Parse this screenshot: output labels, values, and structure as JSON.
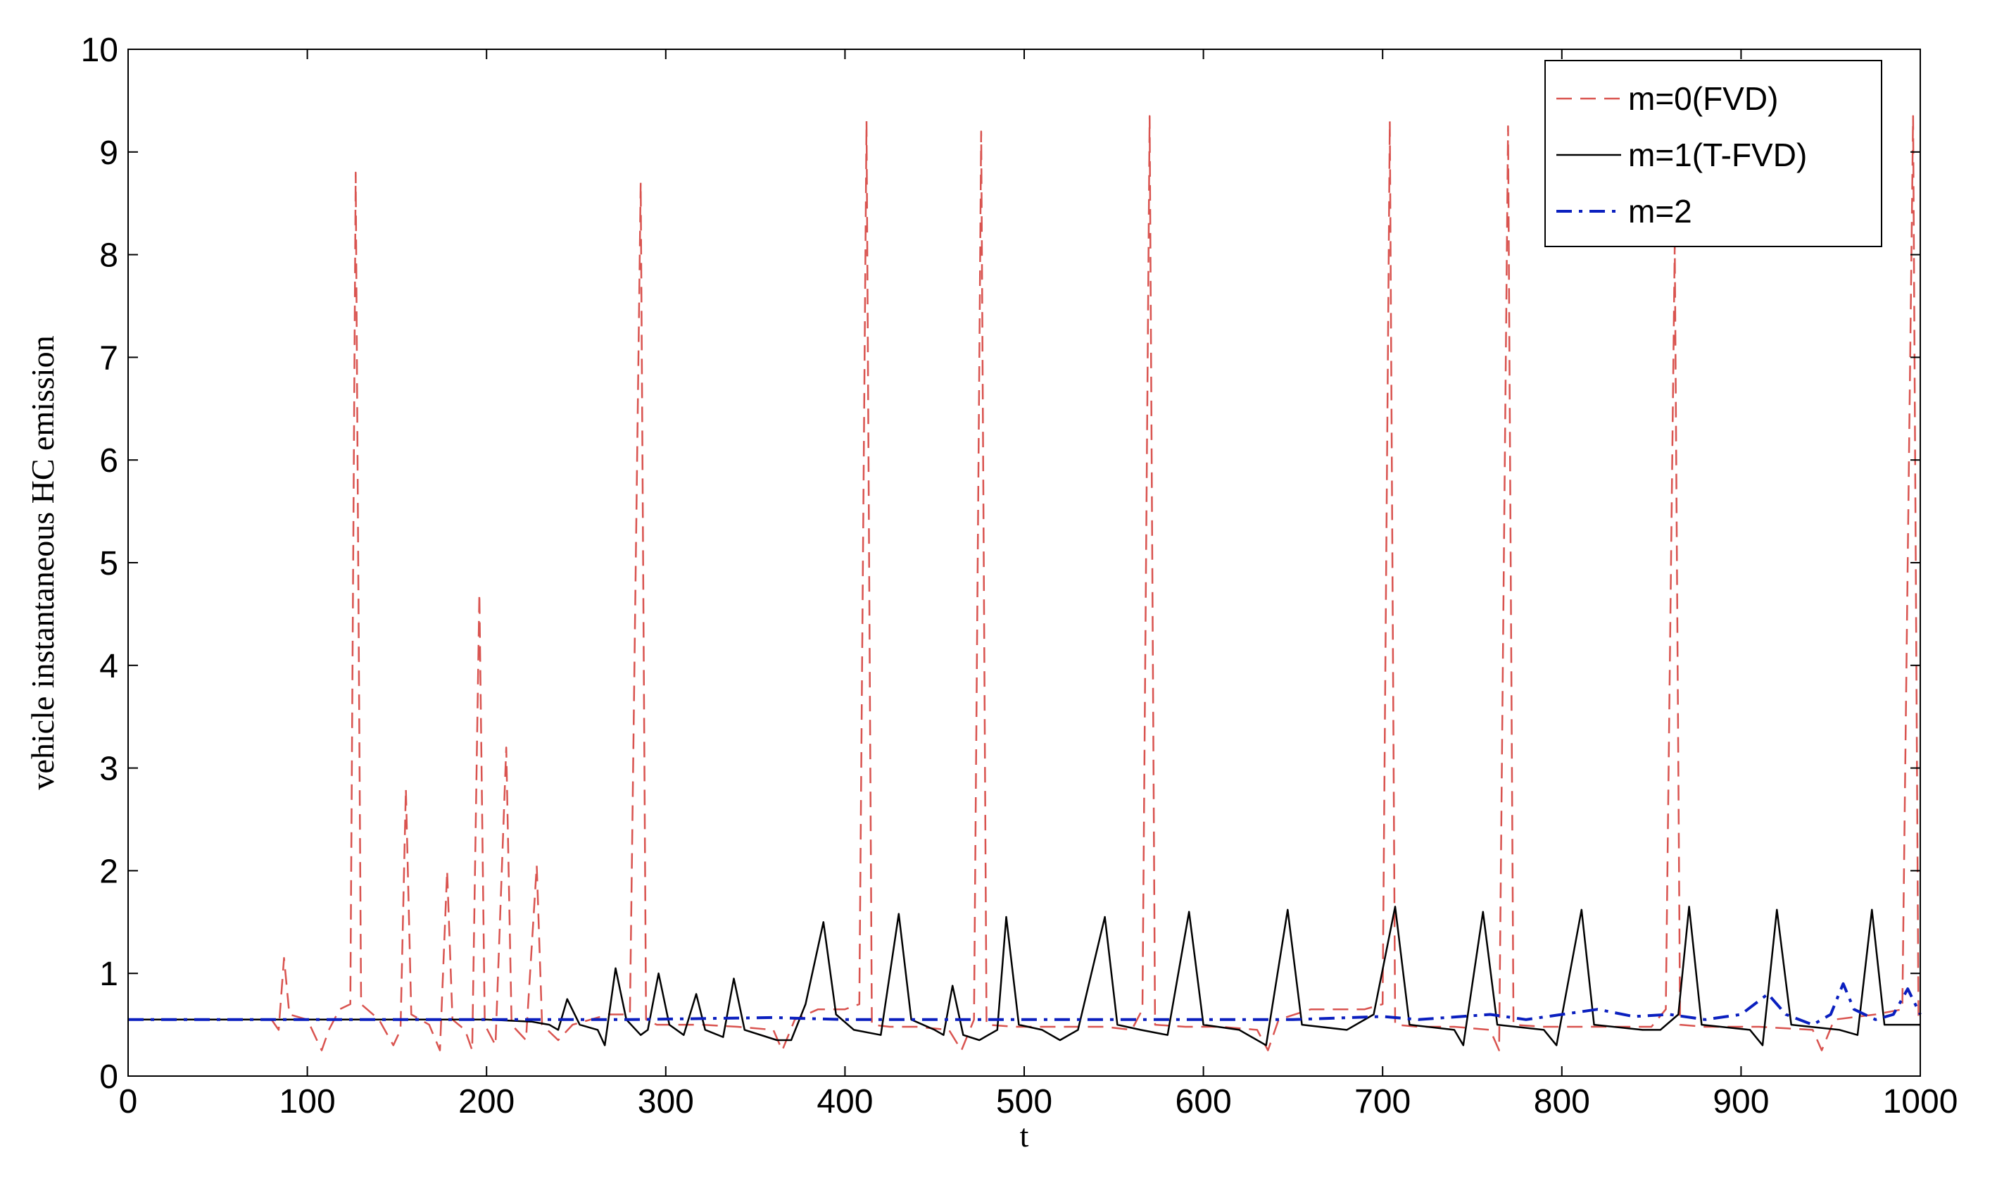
{
  "chart_data": {
    "type": "line",
    "title": "",
    "xlabel": "t",
    "ylabel": "vehicle instantaneous HC emission",
    "xlim": [
      0,
      1000
    ],
    "ylim": [
      0,
      10
    ],
    "x_ticks": [
      "0",
      "100",
      "200",
      "300",
      "400",
      "500",
      "600",
      "700",
      "800",
      "900",
      "1000"
    ],
    "y_ticks": [
      "0",
      "1",
      "2",
      "3",
      "4",
      "5",
      "6",
      "7",
      "8",
      "9",
      "10"
    ],
    "grid": false,
    "legend_position": "top-right",
    "series": [
      {
        "name": "m=0(FVD)",
        "color": "#d9534f",
        "style": "dashed",
        "points": [
          [
            0,
            0.55
          ],
          [
            80,
            0.55
          ],
          [
            84,
            0.45
          ],
          [
            87,
            1.15
          ],
          [
            90,
            0.6
          ],
          [
            100,
            0.55
          ],
          [
            108,
            0.25
          ],
          [
            112,
            0.45
          ],
          [
            118,
            0.65
          ],
          [
            124,
            0.7
          ],
          [
            127,
            8.8
          ],
          [
            130,
            0.7
          ],
          [
            140,
            0.55
          ],
          [
            148,
            0.3
          ],
          [
            152,
            0.45
          ],
          [
            155,
            2.8
          ],
          [
            158,
            0.6
          ],
          [
            168,
            0.5
          ],
          [
            174,
            0.25
          ],
          [
            178,
            2.0
          ],
          [
            181,
            0.55
          ],
          [
            188,
            0.45
          ],
          [
            192,
            0.25
          ],
          [
            196,
            4.7
          ],
          [
            199,
            0.5
          ],
          [
            205,
            0.3
          ],
          [
            211,
            3.2
          ],
          [
            214,
            0.5
          ],
          [
            222,
            0.35
          ],
          [
            228,
            2.05
          ],
          [
            231,
            0.5
          ],
          [
            240,
            0.35
          ],
          [
            248,
            0.5
          ],
          [
            258,
            0.55
          ],
          [
            268,
            0.6
          ],
          [
            280,
            0.6
          ],
          [
            286,
            8.7
          ],
          [
            289,
            0.55
          ],
          [
            295,
            0.5
          ],
          [
            305,
            0.5
          ],
          [
            320,
            0.5
          ],
          [
            340,
            0.48
          ],
          [
            360,
            0.45
          ],
          [
            365,
            0.25
          ],
          [
            372,
            0.55
          ],
          [
            385,
            0.65
          ],
          [
            400,
            0.65
          ],
          [
            408,
            0.7
          ],
          [
            412,
            9.3
          ],
          [
            415,
            0.5
          ],
          [
            425,
            0.48
          ],
          [
            440,
            0.48
          ],
          [
            458,
            0.45
          ],
          [
            465,
            0.25
          ],
          [
            472,
            0.55
          ],
          [
            476,
            9.2
          ],
          [
            479,
            0.5
          ],
          [
            495,
            0.48
          ],
          [
            520,
            0.48
          ],
          [
            545,
            0.48
          ],
          [
            560,
            0.45
          ],
          [
            566,
            0.65
          ],
          [
            570,
            9.35
          ],
          [
            573,
            0.5
          ],
          [
            590,
            0.48
          ],
          [
            610,
            0.48
          ],
          [
            630,
            0.45
          ],
          [
            636,
            0.25
          ],
          [
            642,
            0.55
          ],
          [
            660,
            0.65
          ],
          [
            690,
            0.65
          ],
          [
            700,
            0.7
          ],
          [
            704,
            9.3
          ],
          [
            707,
            0.5
          ],
          [
            720,
            0.48
          ],
          [
            740,
            0.48
          ],
          [
            760,
            0.45
          ],
          [
            765,
            0.25
          ],
          [
            770,
            9.25
          ],
          [
            773,
            0.5
          ],
          [
            790,
            0.48
          ],
          [
            820,
            0.48
          ],
          [
            850,
            0.48
          ],
          [
            858,
            0.65
          ],
          [
            863,
            8.1
          ],
          [
            866,
            0.5
          ],
          [
            880,
            0.48
          ],
          [
            910,
            0.48
          ],
          [
            940,
            0.45
          ],
          [
            945,
            0.25
          ],
          [
            952,
            0.55
          ],
          [
            975,
            0.6
          ],
          [
            990,
            0.65
          ],
          [
            996,
            9.35
          ],
          [
            999,
            0.5
          ],
          [
            1000,
            0.5
          ]
        ]
      },
      {
        "name": "m=1(T-FVD)",
        "color": "#000000",
        "style": "solid",
        "points": [
          [
            0,
            0.55
          ],
          [
            200,
            0.55
          ],
          [
            225,
            0.53
          ],
          [
            235,
            0.5
          ],
          [
            240,
            0.45
          ],
          [
            245,
            0.75
          ],
          [
            252,
            0.5
          ],
          [
            262,
            0.45
          ],
          [
            266,
            0.3
          ],
          [
            272,
            1.05
          ],
          [
            278,
            0.55
          ],
          [
            286,
            0.4
          ],
          [
            290,
            0.45
          ],
          [
            296,
            1.0
          ],
          [
            302,
            0.5
          ],
          [
            310,
            0.4
          ],
          [
            317,
            0.8
          ],
          [
            322,
            0.45
          ],
          [
            332,
            0.38
          ],
          [
            338,
            0.95
          ],
          [
            344,
            0.45
          ],
          [
            362,
            0.35
          ],
          [
            370,
            0.35
          ],
          [
            378,
            0.7
          ],
          [
            388,
            1.5
          ],
          [
            395,
            0.6
          ],
          [
            405,
            0.45
          ],
          [
            420,
            0.4
          ],
          [
            430,
            1.58
          ],
          [
            437,
            0.55
          ],
          [
            450,
            0.45
          ],
          [
            455,
            0.4
          ],
          [
            460,
            0.88
          ],
          [
            466,
            0.4
          ],
          [
            475,
            0.35
          ],
          [
            485,
            0.45
          ],
          [
            490,
            1.55
          ],
          [
            497,
            0.5
          ],
          [
            510,
            0.45
          ],
          [
            520,
            0.35
          ],
          [
            530,
            0.45
          ],
          [
            545,
            1.55
          ],
          [
            552,
            0.5
          ],
          [
            565,
            0.45
          ],
          [
            580,
            0.4
          ],
          [
            592,
            1.6
          ],
          [
            600,
            0.5
          ],
          [
            620,
            0.45
          ],
          [
            635,
            0.3
          ],
          [
            647,
            1.62
          ],
          [
            655,
            0.5
          ],
          [
            680,
            0.45
          ],
          [
            695,
            0.6
          ],
          [
            707,
            1.65
          ],
          [
            715,
            0.5
          ],
          [
            740,
            0.45
          ],
          [
            745,
            0.3
          ],
          [
            756,
            1.6
          ],
          [
            764,
            0.5
          ],
          [
            790,
            0.45
          ],
          [
            797,
            0.3
          ],
          [
            811,
            1.62
          ],
          [
            818,
            0.5
          ],
          [
            845,
            0.45
          ],
          [
            855,
            0.45
          ],
          [
            865,
            0.6
          ],
          [
            871,
            1.65
          ],
          [
            878,
            0.5
          ],
          [
            905,
            0.45
          ],
          [
            912,
            0.3
          ],
          [
            920,
            1.62
          ],
          [
            928,
            0.5
          ],
          [
            955,
            0.45
          ],
          [
            965,
            0.4
          ],
          [
            973,
            1.62
          ],
          [
            980,
            0.5
          ],
          [
            1000,
            0.5
          ]
        ]
      },
      {
        "name": "m=2",
        "color": "#0a1fbf",
        "style": "dashdot",
        "points": [
          [
            0,
            0.55
          ],
          [
            200,
            0.55
          ],
          [
            280,
            0.55
          ],
          [
            360,
            0.57
          ],
          [
            400,
            0.55
          ],
          [
            500,
            0.55
          ],
          [
            600,
            0.55
          ],
          [
            650,
            0.55
          ],
          [
            700,
            0.58
          ],
          [
            720,
            0.55
          ],
          [
            760,
            0.6
          ],
          [
            780,
            0.55
          ],
          [
            800,
            0.6
          ],
          [
            820,
            0.65
          ],
          [
            840,
            0.58
          ],
          [
            860,
            0.6
          ],
          [
            880,
            0.55
          ],
          [
            900,
            0.6
          ],
          [
            915,
            0.8
          ],
          [
            925,
            0.6
          ],
          [
            940,
            0.5
          ],
          [
            950,
            0.6
          ],
          [
            957,
            0.9
          ],
          [
            963,
            0.65
          ],
          [
            975,
            0.55
          ],
          [
            985,
            0.6
          ],
          [
            993,
            0.85
          ],
          [
            1000,
            0.6
          ]
        ]
      }
    ]
  }
}
